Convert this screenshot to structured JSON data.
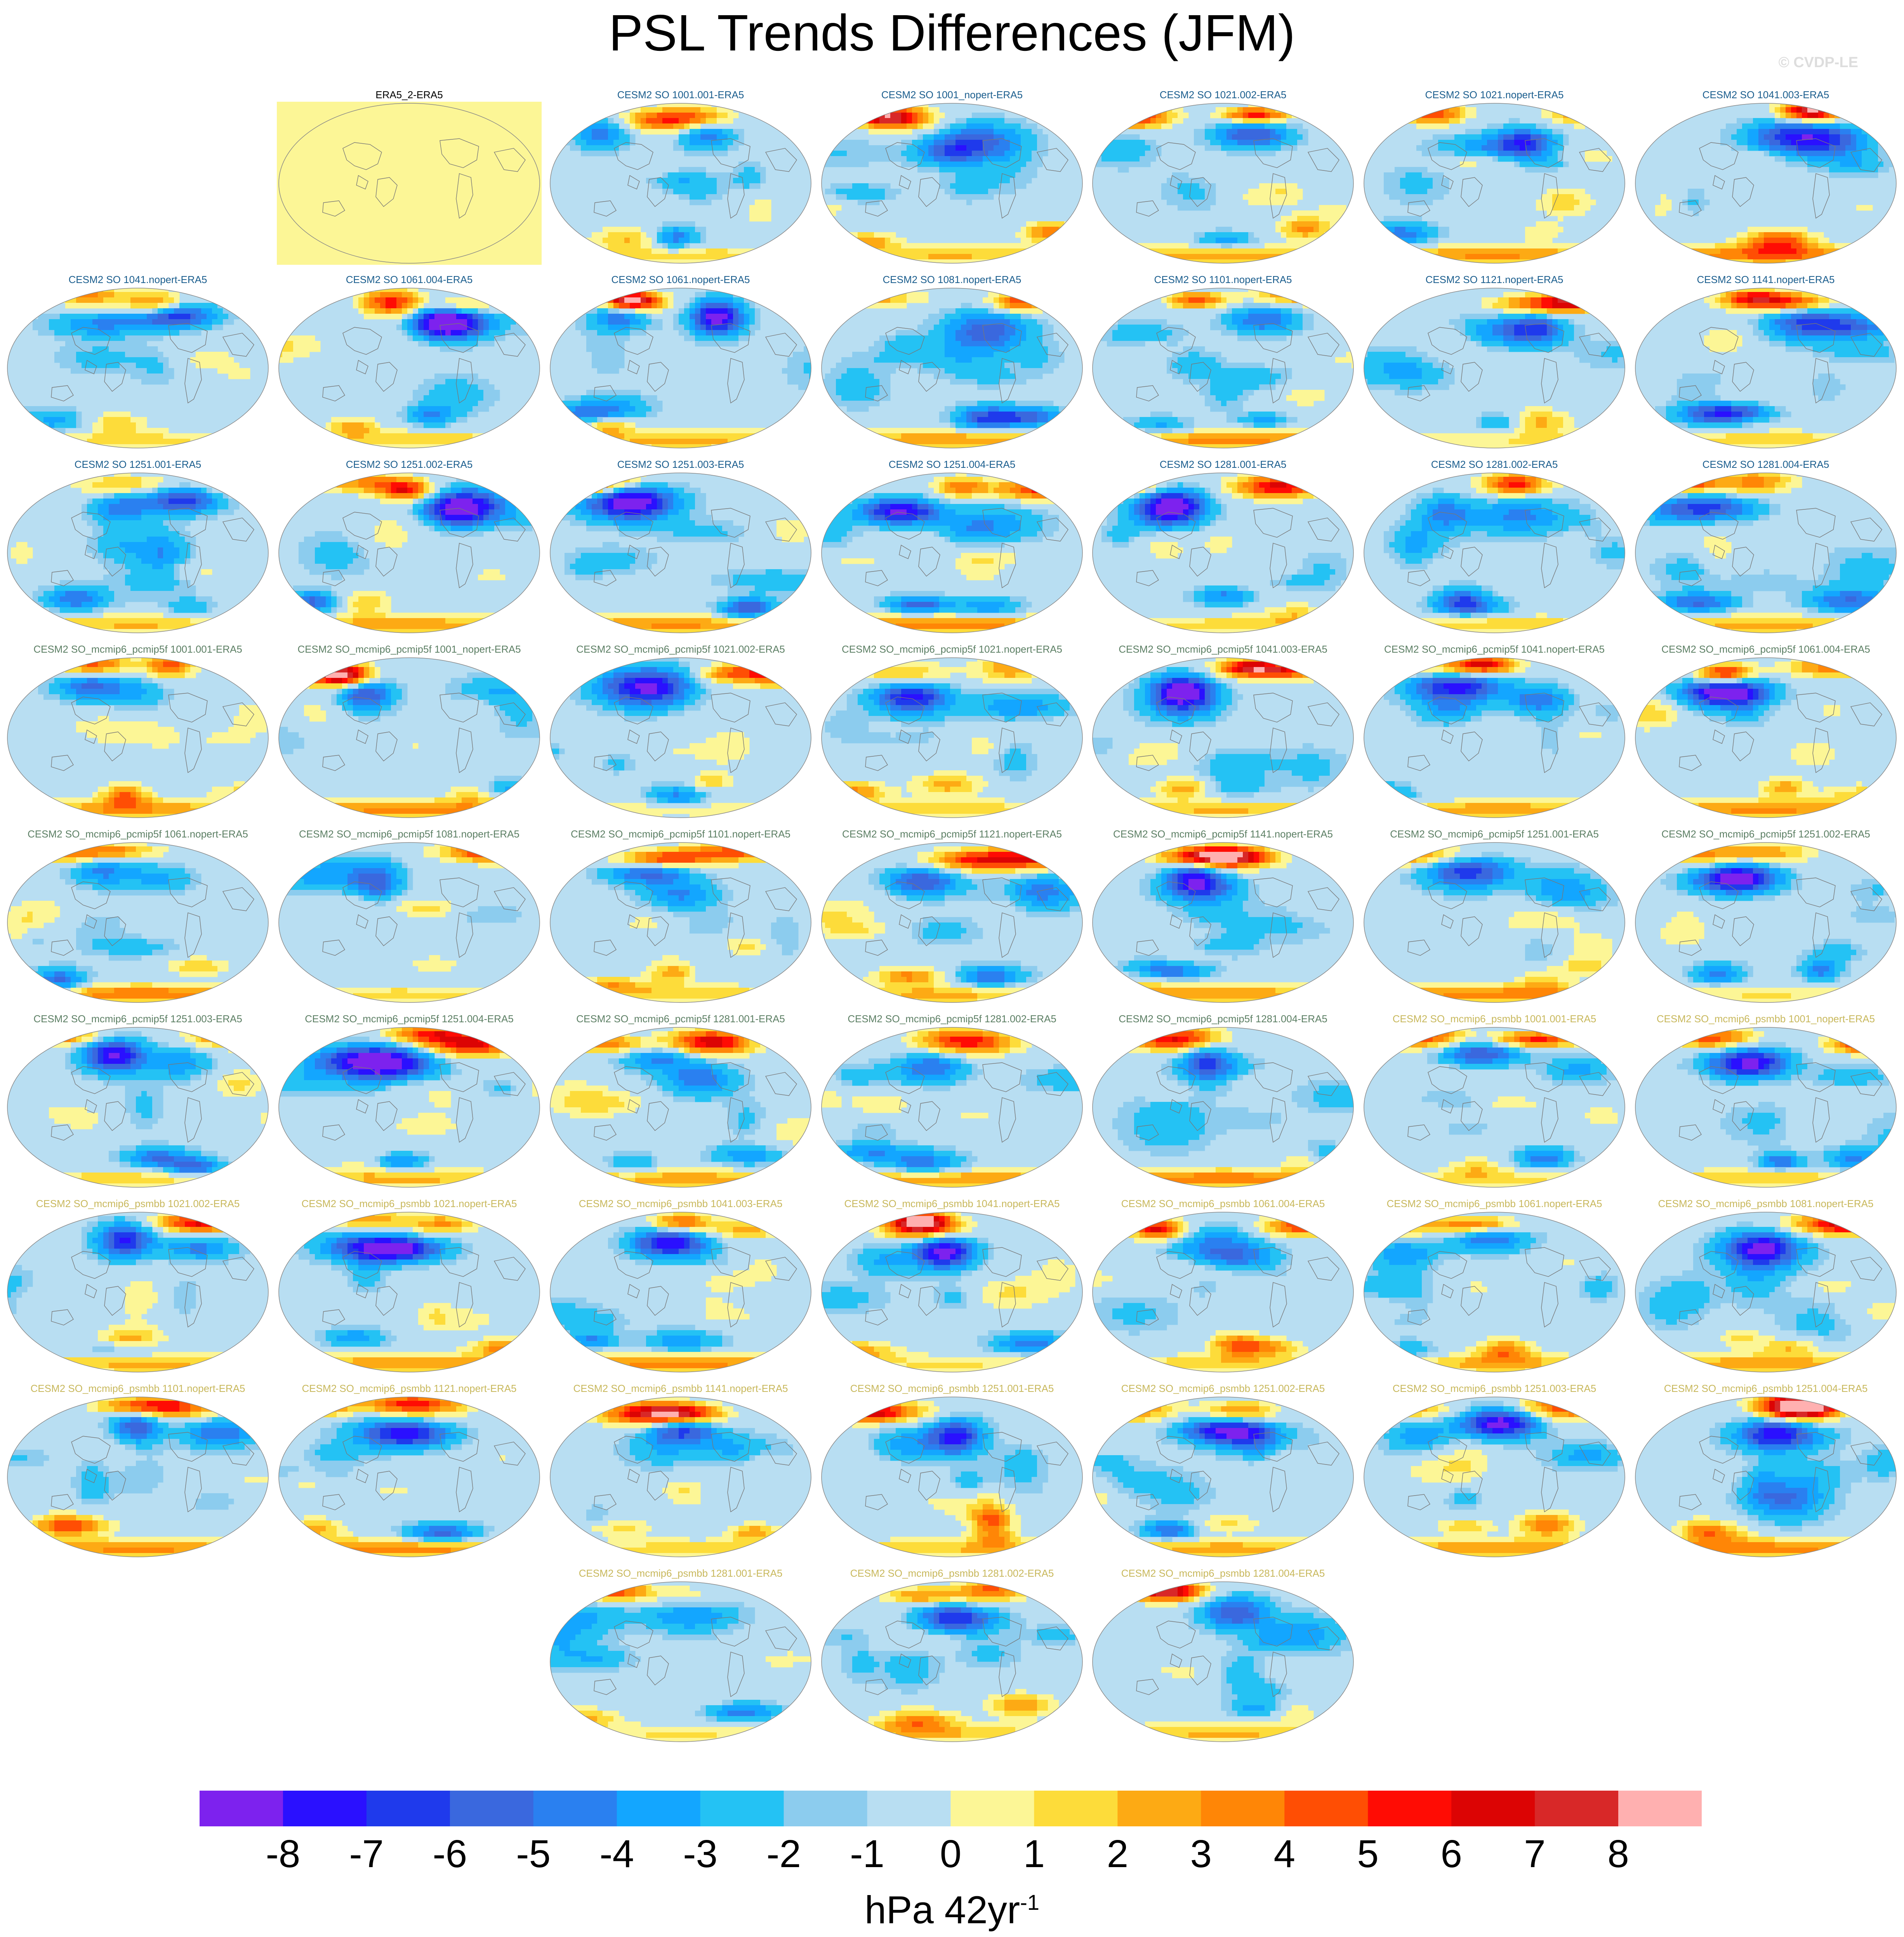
{
  "title": "PSL Trends Differences (JFM)",
  "watermark": "© CVDP-LE",
  "title_colors": {
    "obs": "#000000",
    "so": "#1b5e8e",
    "pcmip5f": "#5c7f64",
    "psmbb": "#c8b85c"
  },
  "colorbar": {
    "colors": [
      "#7d22ee",
      "#2a10ff",
      "#1f3aec",
      "#3a68de",
      "#2a80f0",
      "#13a6ff",
      "#24c2f4",
      "#8cccee",
      "#b8def2",
      "#fcf696",
      "#fddc3a",
      "#fdaa14",
      "#ff8606",
      "#ff4e04",
      "#ff0c04",
      "#dc0404",
      "#d82828",
      "#ffb0b0"
    ],
    "labels": [
      "-8",
      "-7",
      "-6",
      "-5",
      "-4",
      "-3",
      "-2",
      "-1",
      "0",
      "1",
      "2",
      "3",
      "4",
      "5",
      "6",
      "7",
      "8"
    ],
    "units": "hPa 42yr",
    "units_exponent": "-1"
  },
  "panels": [
    {
      "title": "ERA5_2-ERA5",
      "group": "obs",
      "seed": 0,
      "blank": true
    },
    {
      "title": "CESM2 SO 1001.001-ERA5",
      "group": "so",
      "seed": 1
    },
    {
      "title": "CESM2 SO 1001_nopert-ERA5",
      "group": "so",
      "seed": 2
    },
    {
      "title": "CESM2 SO 1021.002-ERA5",
      "group": "so",
      "seed": 3
    },
    {
      "title": "CESM2 SO 1021.nopert-ERA5",
      "group": "so",
      "seed": 4
    },
    {
      "title": "CESM2 SO 1041.003-ERA5",
      "group": "so",
      "seed": 5
    },
    {
      "title": "CESM2 SO 1041.nopert-ERA5",
      "group": "so",
      "seed": 6
    },
    {
      "title": "CESM2 SO 1061.004-ERA5",
      "group": "so",
      "seed": 7
    },
    {
      "title": "CESM2 SO 1061.nopert-ERA5",
      "group": "so",
      "seed": 8
    },
    {
      "title": "CESM2 SO 1081.nopert-ERA5",
      "group": "so",
      "seed": 9
    },
    {
      "title": "CESM2 SO 1101.nopert-ERA5",
      "group": "so",
      "seed": 10
    },
    {
      "title": "CESM2 SO 1121.nopert-ERA5",
      "group": "so",
      "seed": 11
    },
    {
      "title": "CESM2 SO 1141.nopert-ERA5",
      "group": "so",
      "seed": 12
    },
    {
      "title": "CESM2 SO 1251.001-ERA5",
      "group": "so",
      "seed": 13
    },
    {
      "title": "CESM2 SO 1251.002-ERA5",
      "group": "so",
      "seed": 14
    },
    {
      "title": "CESM2 SO 1251.003-ERA5",
      "group": "so",
      "seed": 15
    },
    {
      "title": "CESM2 SO 1251.004-ERA5",
      "group": "so",
      "seed": 16
    },
    {
      "title": "CESM2 SO 1281.001-ERA5",
      "group": "so",
      "seed": 17
    },
    {
      "title": "CESM2 SO 1281.002-ERA5",
      "group": "so",
      "seed": 18
    },
    {
      "title": "CESM2 SO 1281.004-ERA5",
      "group": "so",
      "seed": 19
    },
    {
      "title": "CESM2 SO_mcmip6_pcmip5f 1001.001-ERA5",
      "group": "pcmip5f",
      "seed": 20
    },
    {
      "title": "CESM2 SO_mcmip6_pcmip5f 1001_nopert-ERA5",
      "group": "pcmip5f",
      "seed": 21
    },
    {
      "title": "CESM2 SO_mcmip6_pcmip5f 1021.002-ERA5",
      "group": "pcmip5f",
      "seed": 22
    },
    {
      "title": "CESM2 SO_mcmip6_pcmip5f 1021.nopert-ERA5",
      "group": "pcmip5f",
      "seed": 23
    },
    {
      "title": "CESM2 SO_mcmip6_pcmip5f 1041.003-ERA5",
      "group": "pcmip5f",
      "seed": 24
    },
    {
      "title": "CESM2 SO_mcmip6_pcmip5f 1041.nopert-ERA5",
      "group": "pcmip5f",
      "seed": 25
    },
    {
      "title": "CESM2 SO_mcmip6_pcmip5f 1061.004-ERA5",
      "group": "pcmip5f",
      "seed": 26
    },
    {
      "title": "CESM2 SO_mcmip6_pcmip5f 1061.nopert-ERA5",
      "group": "pcmip5f",
      "seed": 27
    },
    {
      "title": "CESM2 SO_mcmip6_pcmip5f 1081.nopert-ERA5",
      "group": "pcmip5f",
      "seed": 28
    },
    {
      "title": "CESM2 SO_mcmip6_pcmip5f 1101.nopert-ERA5",
      "group": "pcmip5f",
      "seed": 29
    },
    {
      "title": "CESM2 SO_mcmip6_pcmip5f 1121.nopert-ERA5",
      "group": "pcmip5f",
      "seed": 30
    },
    {
      "title": "CESM2 SO_mcmip6_pcmip5f 1141.nopert-ERA5",
      "group": "pcmip5f",
      "seed": 31
    },
    {
      "title": "CESM2 SO_mcmip6_pcmip5f 1251.001-ERA5",
      "group": "pcmip5f",
      "seed": 32
    },
    {
      "title": "CESM2 SO_mcmip6_pcmip5f 1251.002-ERA5",
      "group": "pcmip5f",
      "seed": 33
    },
    {
      "title": "CESM2 SO_mcmip6_pcmip5f 1251.003-ERA5",
      "group": "pcmip5f",
      "seed": 34
    },
    {
      "title": "CESM2 SO_mcmip6_pcmip5f 1251.004-ERA5",
      "group": "pcmip5f",
      "seed": 35
    },
    {
      "title": "CESM2 SO_mcmip6_pcmip5f 1281.001-ERA5",
      "group": "pcmip5f",
      "seed": 36
    },
    {
      "title": "CESM2 SO_mcmip6_pcmip5f 1281.002-ERA5",
      "group": "pcmip5f",
      "seed": 37
    },
    {
      "title": "CESM2 SO_mcmip6_pcmip5f 1281.004-ERA5",
      "group": "pcmip5f",
      "seed": 38
    },
    {
      "title": "CESM2 SO_mcmip6_psmbb 1001.001-ERA5",
      "group": "psmbb",
      "seed": 39
    },
    {
      "title": "CESM2 SO_mcmip6_psmbb 1001_nopert-ERA5",
      "group": "psmbb",
      "seed": 40
    },
    {
      "title": "CESM2 SO_mcmip6_psmbb 1021.002-ERA5",
      "group": "psmbb",
      "seed": 41
    },
    {
      "title": "CESM2 SO_mcmip6_psmbb 1021.nopert-ERA5",
      "group": "psmbb",
      "seed": 42
    },
    {
      "title": "CESM2 SO_mcmip6_psmbb 1041.003-ERA5",
      "group": "psmbb",
      "seed": 43
    },
    {
      "title": "CESM2 SO_mcmip6_psmbb 1041.nopert-ERA5",
      "group": "psmbb",
      "seed": 44
    },
    {
      "title": "CESM2 SO_mcmip6_psmbb 1061.004-ERA5",
      "group": "psmbb",
      "seed": 45
    },
    {
      "title": "CESM2 SO_mcmip6_psmbb 1061.nopert-ERA5",
      "group": "psmbb",
      "seed": 46
    },
    {
      "title": "CESM2 SO_mcmip6_psmbb 1081.nopert-ERA5",
      "group": "psmbb",
      "seed": 47
    },
    {
      "title": "CESM2 SO_mcmip6_psmbb 1101.nopert-ERA5",
      "group": "psmbb",
      "seed": 48
    },
    {
      "title": "CESM2 SO_mcmip6_psmbb 1121.nopert-ERA5",
      "group": "psmbb",
      "seed": 49
    },
    {
      "title": "CESM2 SO_mcmip6_psmbb 1141.nopert-ERA5",
      "group": "psmbb",
      "seed": 50
    },
    {
      "title": "CESM2 SO_mcmip6_psmbb 1251.001-ERA5",
      "group": "psmbb",
      "seed": 51
    },
    {
      "title": "CESM2 SO_mcmip6_psmbb 1251.002-ERA5",
      "group": "psmbb",
      "seed": 52
    },
    {
      "title": "CESM2 SO_mcmip6_psmbb 1251.003-ERA5",
      "group": "psmbb",
      "seed": 53
    },
    {
      "title": "CESM2 SO_mcmip6_psmbb 1251.004-ERA5",
      "group": "psmbb",
      "seed": 54
    },
    {
      "title": "CESM2 SO_mcmip6_psmbb 1281.001-ERA5",
      "group": "psmbb",
      "seed": 55
    },
    {
      "title": "CESM2 SO_mcmip6_psmbb 1281.002-ERA5",
      "group": "psmbb",
      "seed": 56
    },
    {
      "title": "CESM2 SO_mcmip6_psmbb 1281.004-ERA5",
      "group": "psmbb",
      "seed": 57
    }
  ]
}
